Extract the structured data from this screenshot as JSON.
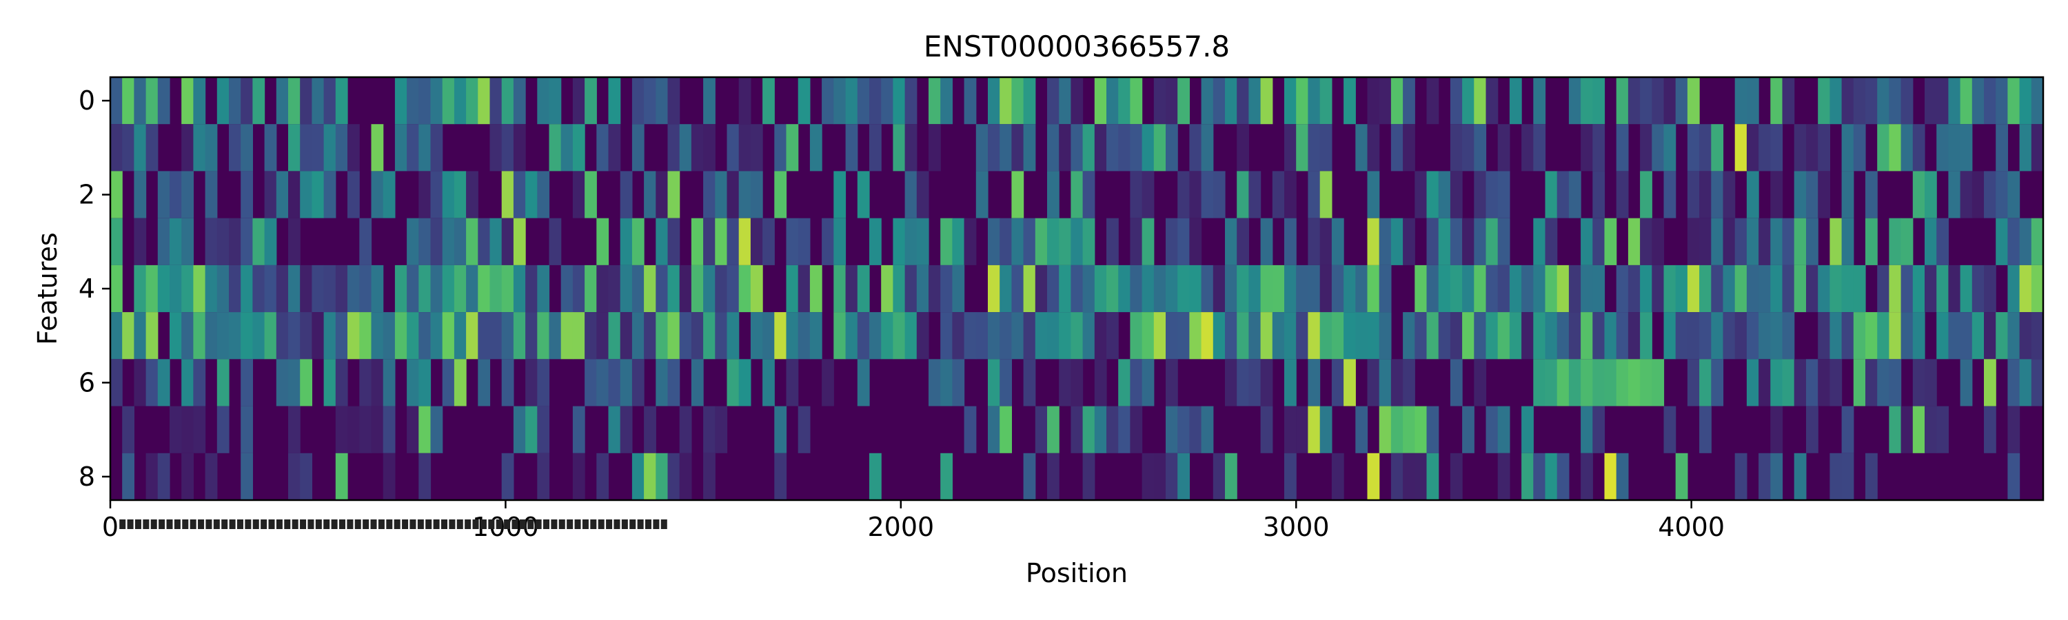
{
  "chart_data": {
    "type": "heatmap",
    "title": "ENST00000366557.8",
    "xlabel": "Position",
    "ylabel": "Features",
    "xlim": [
      0,
      4890
    ],
    "ylim": [
      8.5,
      -0.5
    ],
    "x_ticks": [
      {
        "value": 0,
        "label": "0"
      },
      {
        "value": 1000,
        "label": "1000"
      },
      {
        "value": 2000,
        "label": "2000"
      },
      {
        "value": 3000,
        "label": "3000"
      },
      {
        "value": 4000,
        "label": "4000"
      }
    ],
    "y_ticks": [
      {
        "value": 0,
        "label": "0"
      },
      {
        "value": 2,
        "label": "2"
      },
      {
        "value": 4,
        "label": "4"
      },
      {
        "value": 6,
        "label": "6"
      },
      {
        "value": 8,
        "label": "8"
      }
    ],
    "minor_x_tick_range": [
      30,
      1400
    ],
    "minor_x_tick_count": 70,
    "colormap": "viridis",
    "colors": {
      "low": "#440154",
      "mid": "#21918c",
      "high": "#fde725"
    },
    "features": [
      0,
      1,
      2,
      3,
      4,
      5,
      6,
      7,
      8
    ],
    "feature_density": [
      0.45,
      0.32,
      0.24,
      0.38,
      0.62,
      0.58,
      0.3,
      0.05,
      0.03
    ],
    "notable_regions": [
      {
        "feature": 7,
        "x_start": 3200,
        "x_end": 3320,
        "level": 0.85
      },
      {
        "feature": 8,
        "x_start": 3760,
        "x_end": 3800,
        "level": 1.0
      },
      {
        "feature": 6,
        "x_start": 3580,
        "x_end": 3900,
        "level": 0.75
      },
      {
        "feature": 3,
        "x_start": 1960,
        "x_end": 2060,
        "level": 0.55
      }
    ]
  }
}
